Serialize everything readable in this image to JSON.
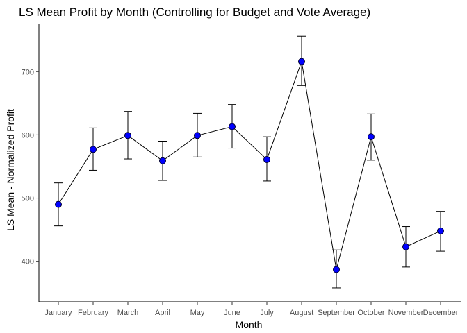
{
  "chart_data": {
    "type": "line",
    "title": "LS Mean Profit by Month (Controlling for Budget and Vote Average)",
    "xlabel": "Month",
    "ylabel": "LS Mean - Normalized Profit",
    "categories": [
      "January",
      "February",
      "March",
      "April",
      "May",
      "June",
      "July",
      "August",
      "September",
      "October",
      "November",
      "December"
    ],
    "values": [
      490,
      577,
      599,
      559,
      599,
      613,
      561,
      716,
      387,
      597,
      423,
      448
    ],
    "lower": [
      456,
      544,
      562,
      528,
      565,
      579,
      527,
      678,
      358,
      560,
      391,
      416
    ],
    "upper": [
      524,
      611,
      637,
      590,
      634,
      648,
      597,
      756,
      418,
      633,
      455,
      479
    ],
    "y_ticks": [
      400,
      500,
      600,
      700
    ],
    "ylim": [
      336,
      776
    ],
    "grid": false,
    "point_color": "#0000ff",
    "line_color": "#000000"
  }
}
